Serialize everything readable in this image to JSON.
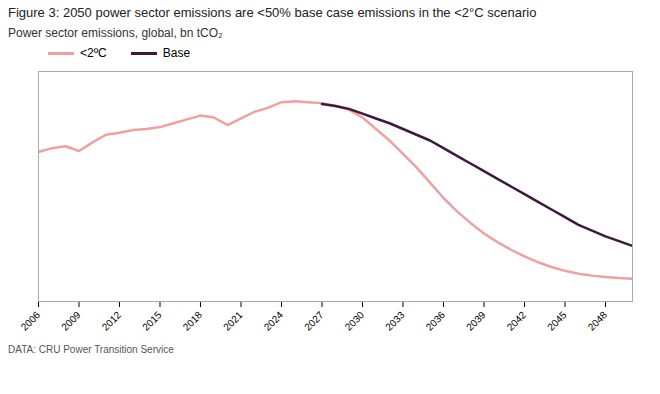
{
  "chart_data": {
    "type": "line",
    "title": "Figure 3: 2050 power sector emissions are <50% base case emissions in the <2°C scenario",
    "ylabel": "Power sector emissions, global, bn tCO₂",
    "footnote": "DATA: CRU Power Transition Service",
    "x": [
      2006,
      2007,
      2008,
      2009,
      2010,
      2011,
      2012,
      2013,
      2014,
      2015,
      2016,
      2017,
      2018,
      2019,
      2020,
      2021,
      2022,
      2023,
      2024,
      2025,
      2026,
      2027,
      2028,
      2029,
      2030,
      2031,
      2032,
      2033,
      2034,
      2035,
      2036,
      2037,
      2038,
      2039,
      2040,
      2041,
      2042,
      2043,
      2044,
      2045,
      2046,
      2047,
      2048,
      2049,
      2050
    ],
    "series": [
      {
        "name": "<2ºC",
        "color": "#f0a0a0",
        "values": [
          7.8,
          8.0,
          8.1,
          7.85,
          8.3,
          8.7,
          8.8,
          8.95,
          9.0,
          9.1,
          9.3,
          9.5,
          9.7,
          9.6,
          9.2,
          9.55,
          9.9,
          10.1,
          10.4,
          10.45,
          10.4,
          10.35,
          10.2,
          10.0,
          9.6,
          9.0,
          8.4,
          7.7,
          7.0,
          6.2,
          5.4,
          4.7,
          4.1,
          3.55,
          3.1,
          2.7,
          2.35,
          2.05,
          1.8,
          1.6,
          1.45,
          1.35,
          1.28,
          1.22,
          1.18
        ]
      },
      {
        "name": "Base",
        "color": "#3d1a3d",
        "values": [
          null,
          null,
          null,
          null,
          null,
          null,
          null,
          null,
          null,
          null,
          null,
          null,
          null,
          null,
          null,
          null,
          null,
          null,
          null,
          null,
          null,
          10.3,
          10.2,
          10.05,
          9.8,
          9.55,
          9.3,
          9.0,
          8.7,
          8.4,
          8.0,
          7.6,
          7.2,
          6.8,
          6.4,
          6.0,
          5.6,
          5.2,
          4.8,
          4.4,
          4.0,
          3.7,
          3.4,
          3.15,
          2.9
        ]
      }
    ],
    "xlim": [
      2006,
      2050
    ],
    "xticks": [
      2006,
      2009,
      2012,
      2015,
      2018,
      2021,
      2024,
      2027,
      2030,
      2033,
      2036,
      2039,
      2042,
      2045,
      2048
    ],
    "ylim": [
      0,
      12
    ],
    "tick_labels": "x",
    "legend": "top",
    "grid": false
  }
}
